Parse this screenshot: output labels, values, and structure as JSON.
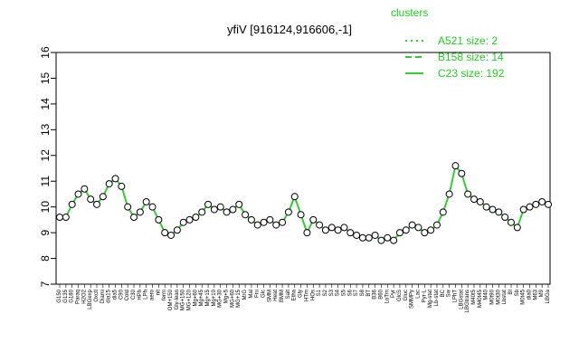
{
  "chart_data": {
    "type": "line",
    "title": "yfiV [916124,916606,-1]",
    "xlabel": "",
    "ylabel": "",
    "ylim": [
      7,
      16
    ],
    "yticks": [
      7,
      8,
      9,
      10,
      11,
      12,
      13,
      14,
      15,
      16
    ],
    "legend": {
      "title": "clusters",
      "position": "top-right",
      "entries": [
        {
          "label": "A521 size: 2",
          "style": "dotted"
        },
        {
          "label": "B158 size: 14",
          "style": "dashed"
        },
        {
          "label": "C23 size: 192",
          "style": "solid"
        }
      ]
    },
    "line_color": "#33cc33",
    "categories": [
      "G150",
      "G135",
      "G180",
      "Paraq",
      "H2O2",
      "LBGexp",
      "Oxctl",
      "Diami",
      "dia15",
      "dia5",
      "C90",
      "Cold",
      "C30",
      "HPh",
      "LPh",
      "aero",
      "nit",
      "ferm",
      "OM+150",
      "Gly-lean",
      "MG+150",
      "MG+120",
      "Mg+60",
      "Mg+45",
      "Mg+15",
      "Mg+10",
      "MG+30",
      "Mg+5",
      "MG+60",
      "MG+15",
      "M/G",
      "Mal",
      "Fru",
      "Glc",
      "SMM",
      "Heat",
      "BMM",
      "Salt",
      "Etha",
      "Gly",
      "HTm",
      "HOs",
      "S1",
      "S2",
      "S3",
      "S4",
      "S5",
      "S6",
      "S7",
      "S8",
      "BT",
      "B36",
      "B60",
      "LoTm",
      "Pyr",
      "GlcS",
      "Gluc",
      "SMMPy",
      "Lac",
      "Pyr-L",
      "Mg-stat",
      "Lb-stat",
      "BC",
      "Sw",
      "LPhT",
      "LBGstat",
      "LBGtrans",
      "M40t5",
      "M40t45",
      "M40",
      "M0t90",
      "M0t30",
      "Lbstat",
      "BI",
      "Sb",
      "M0t45",
      "dia0",
      "M63",
      "M9",
      "LBGa"
    ],
    "series": [
      {
        "values": [
          9.6,
          9.6,
          10.1,
          10.5,
          10.7,
          10.3,
          10.1,
          10.4,
          10.9,
          11.1,
          10.8,
          10.0,
          9.6,
          9.8,
          10.2,
          10.0,
          9.5,
          9.0,
          8.9,
          9.1,
          9.4,
          9.5,
          9.6,
          9.8,
          10.1,
          9.9,
          10.0,
          9.8,
          9.9,
          10.1,
          9.7,
          9.5,
          9.3,
          9.4,
          9.5,
          9.3,
          9.4,
          9.8,
          10.4,
          9.7,
          9.0,
          9.5,
          9.3,
          9.1,
          9.2,
          9.1,
          9.2,
          9.0,
          8.9,
          8.8,
          8.8,
          8.9,
          8.7,
          8.8,
          8.7,
          9.0,
          9.1,
          9.3,
          9.2,
          9.0,
          9.1,
          9.3,
          9.8,
          10.5,
          11.6,
          11.3,
          10.5,
          10.3,
          10.2,
          10.0,
          9.9,
          9.8,
          9.6,
          9.4,
          9.2,
          9.9,
          10.0,
          10.1,
          10.2,
          10.1
        ]
      }
    ]
  }
}
